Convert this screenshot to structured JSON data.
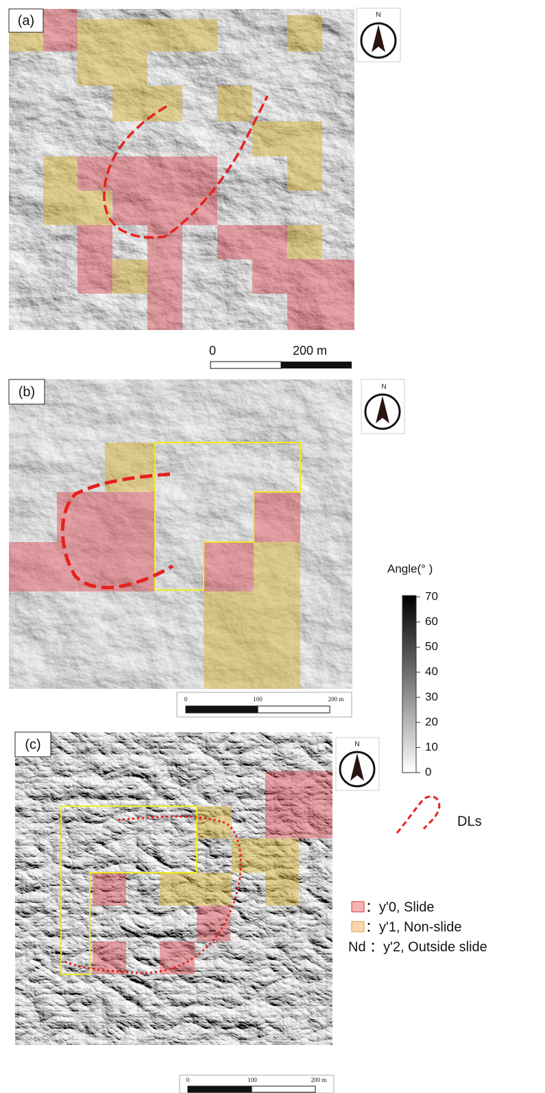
{
  "panels": [
    {
      "label": "(a)",
      "compass": "N",
      "scale_bar": [
        "0",
        "200 m"
      ]
    },
    {
      "label": "(b)",
      "compass": "N",
      "scale_bar": [
        "0",
        "100",
        "200 m"
      ]
    },
    {
      "label": "(c)",
      "compass": "N",
      "scale_bar": [
        "0",
        "100",
        "200 m"
      ]
    }
  ],
  "colorbar": {
    "title": "Angle(°  )",
    "range": [
      0,
      70
    ],
    "ticks": [
      70,
      60,
      50,
      40,
      30,
      20,
      10,
      0
    ]
  },
  "line_legend": "DLs",
  "legend": [
    {
      "text": "：y'0, Slide",
      "color": "#f4b4b6"
    },
    {
      "text": "：y'1, Non-slide",
      "color": "#f7d7ad"
    },
    {
      "text": "Nd ：y'2, Outside slide"
    }
  ]
}
